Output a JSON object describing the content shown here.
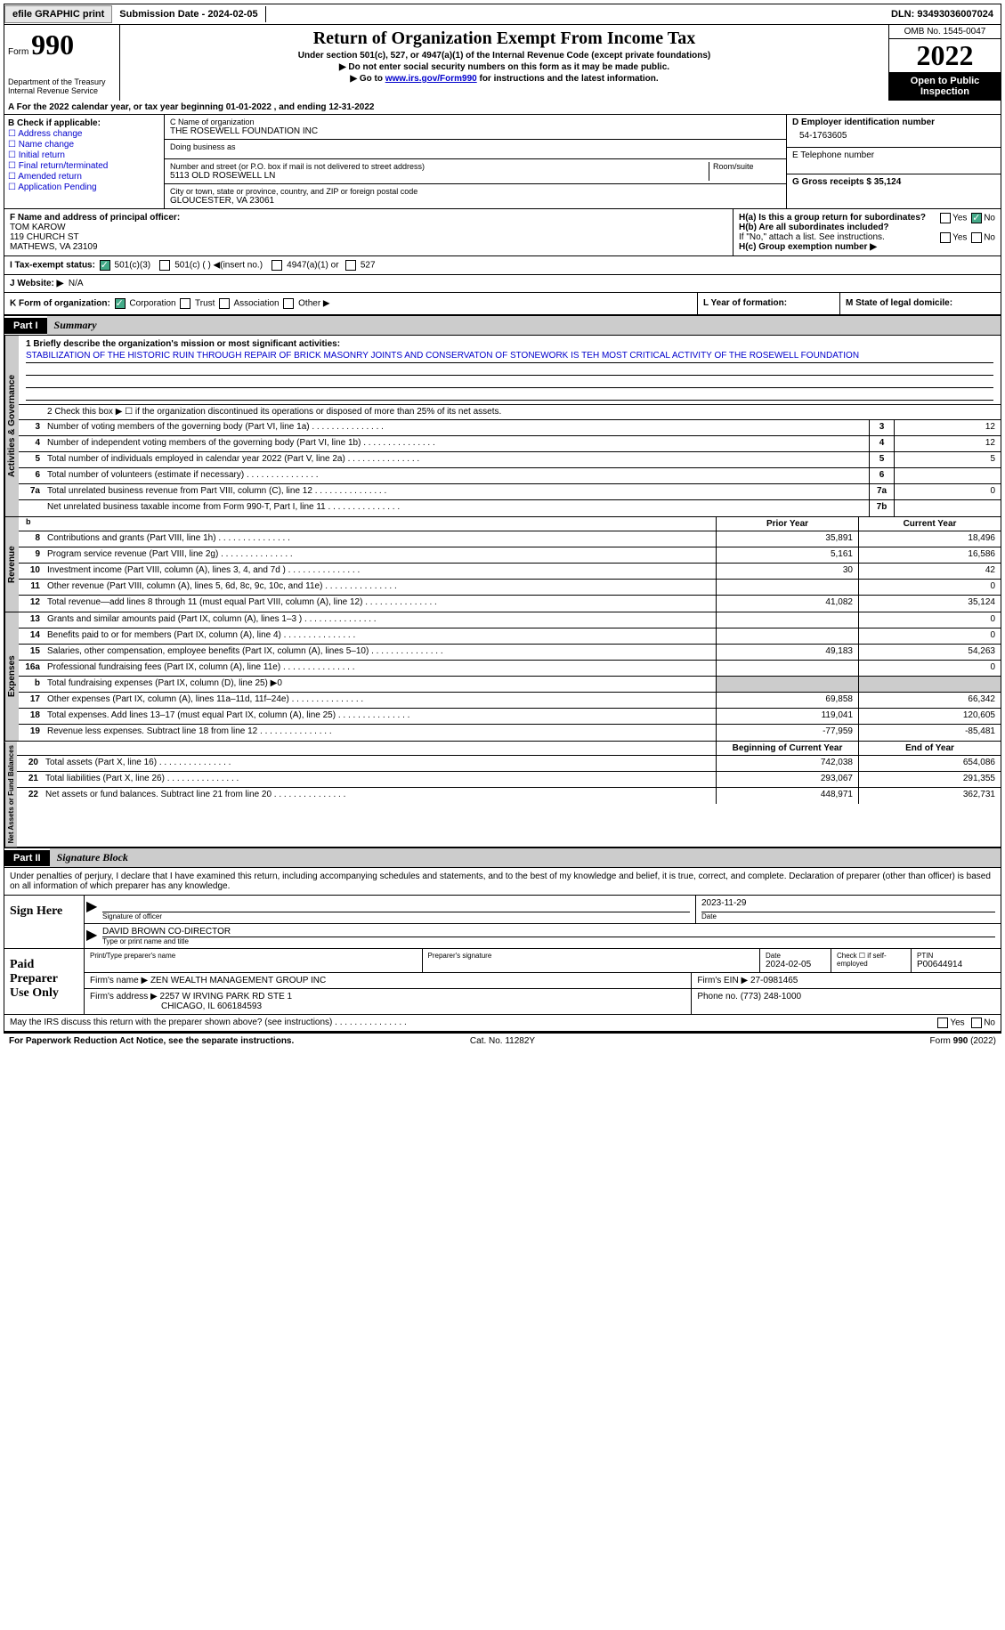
{
  "topbar": {
    "efile": "efile GRAPHIC print",
    "submission_label": "Submission Date - 2024-02-05",
    "dln_label": "DLN: 93493036007024"
  },
  "header": {
    "form_prefix": "Form",
    "form_number": "990",
    "dept": "Department of the Treasury Internal Revenue Service",
    "title": "Return of Organization Exempt From Income Tax",
    "subtitle": "Under section 501(c), 527, or 4947(a)(1) of the Internal Revenue Code (except private foundations)",
    "note1": "▶ Do not enter social security numbers on this form as it may be made public.",
    "note2_pre": "▶ Go to ",
    "note2_link": "www.irs.gov/Form990",
    "note2_post": " for instructions and the latest information.",
    "omb": "OMB No. 1545-0047",
    "year": "2022",
    "inspection": "Open to Public Inspection"
  },
  "line_a": {
    "text": "A For the 2022 calendar year, or tax year beginning 01-01-2022    , and ending 12-31-2022"
  },
  "section_b": {
    "label": "B Check if applicable:",
    "opts": [
      "Address change",
      "Name change",
      "Initial return",
      "Final return/terminated",
      "Amended return",
      "Application Pending"
    ]
  },
  "section_c": {
    "name_label": "C Name of organization",
    "name": "THE ROSEWELL FOUNDATION INC",
    "dba_label": "Doing business as",
    "dba": "",
    "addr_label": "Number and street (or P.O. box if mail is not delivered to street address)",
    "room_label": "Room/suite",
    "addr": "5113 OLD ROSEWELL LN",
    "city_label": "City or town, state or province, country, and ZIP or foreign postal code",
    "city": "GLOUCESTER, VA  23061"
  },
  "section_d": {
    "label": "D Employer identification number",
    "val": "54-1763605"
  },
  "section_e": {
    "label": "E Telephone number",
    "val": ""
  },
  "section_g": {
    "label": "G Gross receipts $ 35,124"
  },
  "section_f": {
    "label": "F  Name and address of principal officer:",
    "name": "TOM KAROW",
    "addr1": "119 CHURCH ST",
    "addr2": "MATHEWS, VA  23109"
  },
  "section_h": {
    "ha_label": "H(a)  Is this a group return for subordinates?",
    "yes": "Yes",
    "no": "No",
    "hb_label": "H(b)  Are all subordinates included?",
    "hb_note": "If \"No,\" attach a list. See instructions.",
    "hc_label": "H(c)  Group exemption number ▶"
  },
  "exempt": {
    "i_label": "I  Tax-exempt status:",
    "opt1": "501(c)(3)",
    "opt2": "501(c) (  ) ◀(insert no.)",
    "opt3": "4947(a)(1) or",
    "opt4": "527",
    "j_label": "J  Website: ▶",
    "j_val": "N/A"
  },
  "korg": {
    "k_label": "K Form of organization:",
    "k_opts": [
      "Corporation",
      "Trust",
      "Association",
      "Other ▶"
    ],
    "l_label": "L Year of formation:",
    "m_label": "M State of legal domicile:"
  },
  "part1": {
    "tab": "Part I",
    "title": "Summary",
    "line1_label": "1  Briefly describe the organization's mission or most significant activities:",
    "mission": "STABILIZATION OF THE HISTORIC RUIN THROUGH REPAIR OF BRICK MASONRY JOINTS AND CONSERVATON OF STONEWORK IS TEH MOST CRITICAL ACTIVITY OF THE ROSEWELL FOUNDATION",
    "line2": "2   Check this box ▶ ☐ if the organization discontinued its operations or disposed of more than 25% of its net assets.",
    "rows_gov": [
      {
        "n": "3",
        "t": "Number of voting members of the governing body (Part VI, line 1a)",
        "bn": "3",
        "v": "12"
      },
      {
        "n": "4",
        "t": "Number of independent voting members of the governing body (Part VI, line 1b)",
        "bn": "4",
        "v": "12"
      },
      {
        "n": "5",
        "t": "Total number of individuals employed in calendar year 2022 (Part V, line 2a)",
        "bn": "5",
        "v": "5"
      },
      {
        "n": "6",
        "t": "Total number of volunteers (estimate if necessary)",
        "bn": "6",
        "v": ""
      },
      {
        "n": "7a",
        "t": "Total unrelated business revenue from Part VIII, column (C), line 12",
        "bn": "7a",
        "v": "0"
      },
      {
        "n": "",
        "t": "Net unrelated business taxable income from Form 990-T, Part I, line 11",
        "bn": "7b",
        "v": ""
      }
    ],
    "prior_hdr": "Prior Year",
    "curr_hdr": "Current Year",
    "rows_rev": [
      {
        "n": "8",
        "t": "Contributions and grants (Part VIII, line 1h)",
        "p": "35,891",
        "c": "18,496"
      },
      {
        "n": "9",
        "t": "Program service revenue (Part VIII, line 2g)",
        "p": "5,161",
        "c": "16,586"
      },
      {
        "n": "10",
        "t": "Investment income (Part VIII, column (A), lines 3, 4, and 7d )",
        "p": "30",
        "c": "42"
      },
      {
        "n": "11",
        "t": "Other revenue (Part VIII, column (A), lines 5, 6d, 8c, 9c, 10c, and 11e)",
        "p": "",
        "c": "0"
      },
      {
        "n": "12",
        "t": "Total revenue—add lines 8 through 11 (must equal Part VIII, column (A), line 12)",
        "p": "41,082",
        "c": "35,124"
      }
    ],
    "rows_exp": [
      {
        "n": "13",
        "t": "Grants and similar amounts paid (Part IX, column (A), lines 1–3 )",
        "p": "",
        "c": "0"
      },
      {
        "n": "14",
        "t": "Benefits paid to or for members (Part IX, column (A), line 4)",
        "p": "",
        "c": "0"
      },
      {
        "n": "15",
        "t": "Salaries, other compensation, employee benefits (Part IX, column (A), lines 5–10)",
        "p": "49,183",
        "c": "54,263"
      },
      {
        "n": "16a",
        "t": "Professional fundraising fees (Part IX, column (A), line 11e)",
        "p": "",
        "c": "0"
      },
      {
        "n": "b",
        "t": "Total fundraising expenses (Part IX, column (D), line 25) ▶0",
        "p": "gray",
        "c": "gray"
      },
      {
        "n": "17",
        "t": "Other expenses (Part IX, column (A), lines 11a–11d, 11f–24e)",
        "p": "69,858",
        "c": "66,342"
      },
      {
        "n": "18",
        "t": "Total expenses. Add lines 13–17 (must equal Part IX, column (A), line 25)",
        "p": "119,041",
        "c": "120,605"
      },
      {
        "n": "19",
        "t": "Revenue less expenses. Subtract line 18 from line 12",
        "p": "-77,959",
        "c": "-85,481"
      }
    ],
    "boy_hdr": "Beginning of Current Year",
    "eoy_hdr": "End of Year",
    "rows_net": [
      {
        "n": "20",
        "t": "Total assets (Part X, line 16)",
        "p": "742,038",
        "c": "654,086"
      },
      {
        "n": "21",
        "t": "Total liabilities (Part X, line 26)",
        "p": "293,067",
        "c": "291,355"
      },
      {
        "n": "22",
        "t": "Net assets or fund balances. Subtract line 21 from line 20",
        "p": "448,971",
        "c": "362,731"
      }
    ],
    "vl_gov": "Activities & Governance",
    "vl_rev": "Revenue",
    "vl_exp": "Expenses",
    "vl_net": "Net Assets or Fund Balances"
  },
  "part2": {
    "tab": "Part II",
    "title": "Signature Block",
    "intro": "Under penalties of perjury, I declare that I have examined this return, including accompanying schedules and statements, and to the best of my knowledge and belief, it is true, correct, and complete. Declaration of preparer (other than officer) is based on all information of which preparer has any knowledge.",
    "sign_here": "Sign Here",
    "sig_officer_label": "Signature of officer",
    "sig_date": "2023-11-29",
    "date_label": "Date",
    "officer_name": "DAVID BROWN  CO-DIRECTOR",
    "name_title_label": "Type or print name and title",
    "paid_label": "Paid Preparer Use Only",
    "prep_name_label": "Print/Type preparer's name",
    "prep_sig_label": "Preparer's signature",
    "prep_date_label": "Date",
    "prep_date": "2024-02-05",
    "check_self_label": "Check ☐ if self-employed",
    "ptin_label": "PTIN",
    "ptin": "P00644914",
    "firm_name_label": "Firm's name   ▶",
    "firm_name": "ZEN WEALTH MANAGEMENT GROUP INC",
    "firm_ein_label": "Firm's EIN ▶",
    "firm_ein": "27-0981465",
    "firm_addr_label": "Firm's address ▶",
    "firm_addr1": "2257 W IRVING PARK RD STE 1",
    "firm_addr2": "CHICAGO, IL  606184593",
    "phone_label": "Phone no.",
    "phone": "(773) 248-1000",
    "discuss": "May the IRS discuss this return with the preparer shown above? (see instructions)",
    "yes": "Yes",
    "no": "No"
  },
  "footer": {
    "pra": "For Paperwork Reduction Act Notice, see the separate instructions.",
    "cat": "Cat. No. 11282Y",
    "form": "Form 990 (2022)"
  }
}
